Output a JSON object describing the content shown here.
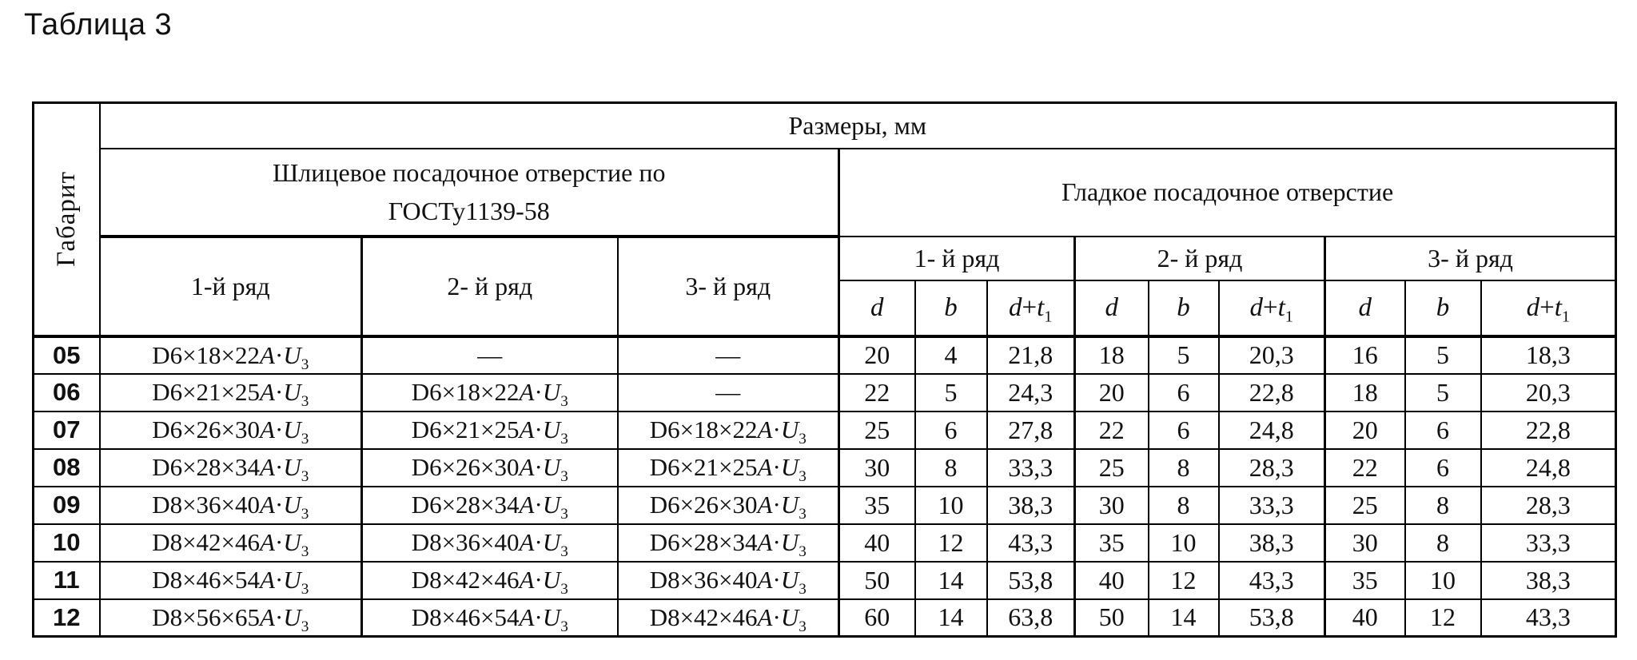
{
  "page_title": "Таблица 3",
  "colors": {
    "text": "#111111",
    "border": "#000000",
    "background": "#ffffff"
  },
  "table": {
    "corner_header": "Габарит",
    "top_header": "Размеры, мм",
    "spline_section": {
      "title_line1": "Шлицевое посадочное отверстие по",
      "title_line2": "ГОСТу1139-58",
      "columns": [
        "1-й ряд",
        "2- й ряд",
        "3- й ряд"
      ]
    },
    "smooth_section": {
      "title": "Гладкое посадочное отверстие",
      "groups": [
        "1- й ряд",
        "2- й ряд",
        "3- й ряд"
      ],
      "sub_columns": [
        "d",
        "b",
        "d+t₁"
      ]
    },
    "rows": [
      {
        "gabarit": "05",
        "spline": [
          "D6×18×22A·U₃",
          "—",
          "—"
        ],
        "values": [
          "20",
          "4",
          "21,8",
          "18",
          "5",
          "20,3",
          "16",
          "5",
          "18,3"
        ]
      },
      {
        "gabarit": "06",
        "spline": [
          "D6×21×25A·U₃",
          "D6×18×22A·U₃",
          "—"
        ],
        "values": [
          "22",
          "5",
          "24,3",
          "20",
          "6",
          "22,8",
          "18",
          "5",
          "20,3"
        ]
      },
      {
        "gabarit": "07",
        "spline": [
          "D6×26×30A·U₃",
          "D6×21×25A·U₃",
          "D6×18×22A·U₃"
        ],
        "values": [
          "25",
          "6",
          "27,8",
          "22",
          "6",
          "24,8",
          "20",
          "6",
          "22,8"
        ]
      },
      {
        "gabarit": "08",
        "spline": [
          "D6×28×34A·U₃",
          "D6×26×30A·U₃",
          "D6×21×25A·U₃"
        ],
        "values": [
          "30",
          "8",
          "33,3",
          "25",
          "8",
          "28,3",
          "22",
          "6",
          "24,8"
        ]
      },
      {
        "gabarit": "09",
        "spline": [
          "D8×36×40A·U₃",
          "D6×28×34A·U₃",
          "D6×26×30A·U₃"
        ],
        "values": [
          "35",
          "10",
          "38,3",
          "30",
          "8",
          "33,3",
          "25",
          "8",
          "28,3"
        ]
      },
      {
        "gabarit": "10",
        "spline": [
          "D8×42×46A·U₃",
          "D8×36×40A·U₃",
          "D6×28×34A·U₃"
        ],
        "values": [
          "40",
          "12",
          "43,3",
          "35",
          "10",
          "38,3",
          "30",
          "8",
          "33,3"
        ]
      },
      {
        "gabarit": "11",
        "spline": [
          "D8×46×54A·U₃",
          "D8×42×46A·U₃",
          "D8×36×40A·U₃"
        ],
        "values": [
          "50",
          "14",
          "53,8",
          "40",
          "12",
          "43,3",
          "35",
          "10",
          "38,3"
        ]
      },
      {
        "gabarit": "12",
        "spline": [
          "D8×56×65A·U₃",
          "D8×46×54A·U₃",
          "D8×42×46A·U₃"
        ],
        "values": [
          "60",
          "14",
          "63,8",
          "50",
          "14",
          "53,8",
          "40",
          "12",
          "43,3"
        ]
      }
    ]
  }
}
